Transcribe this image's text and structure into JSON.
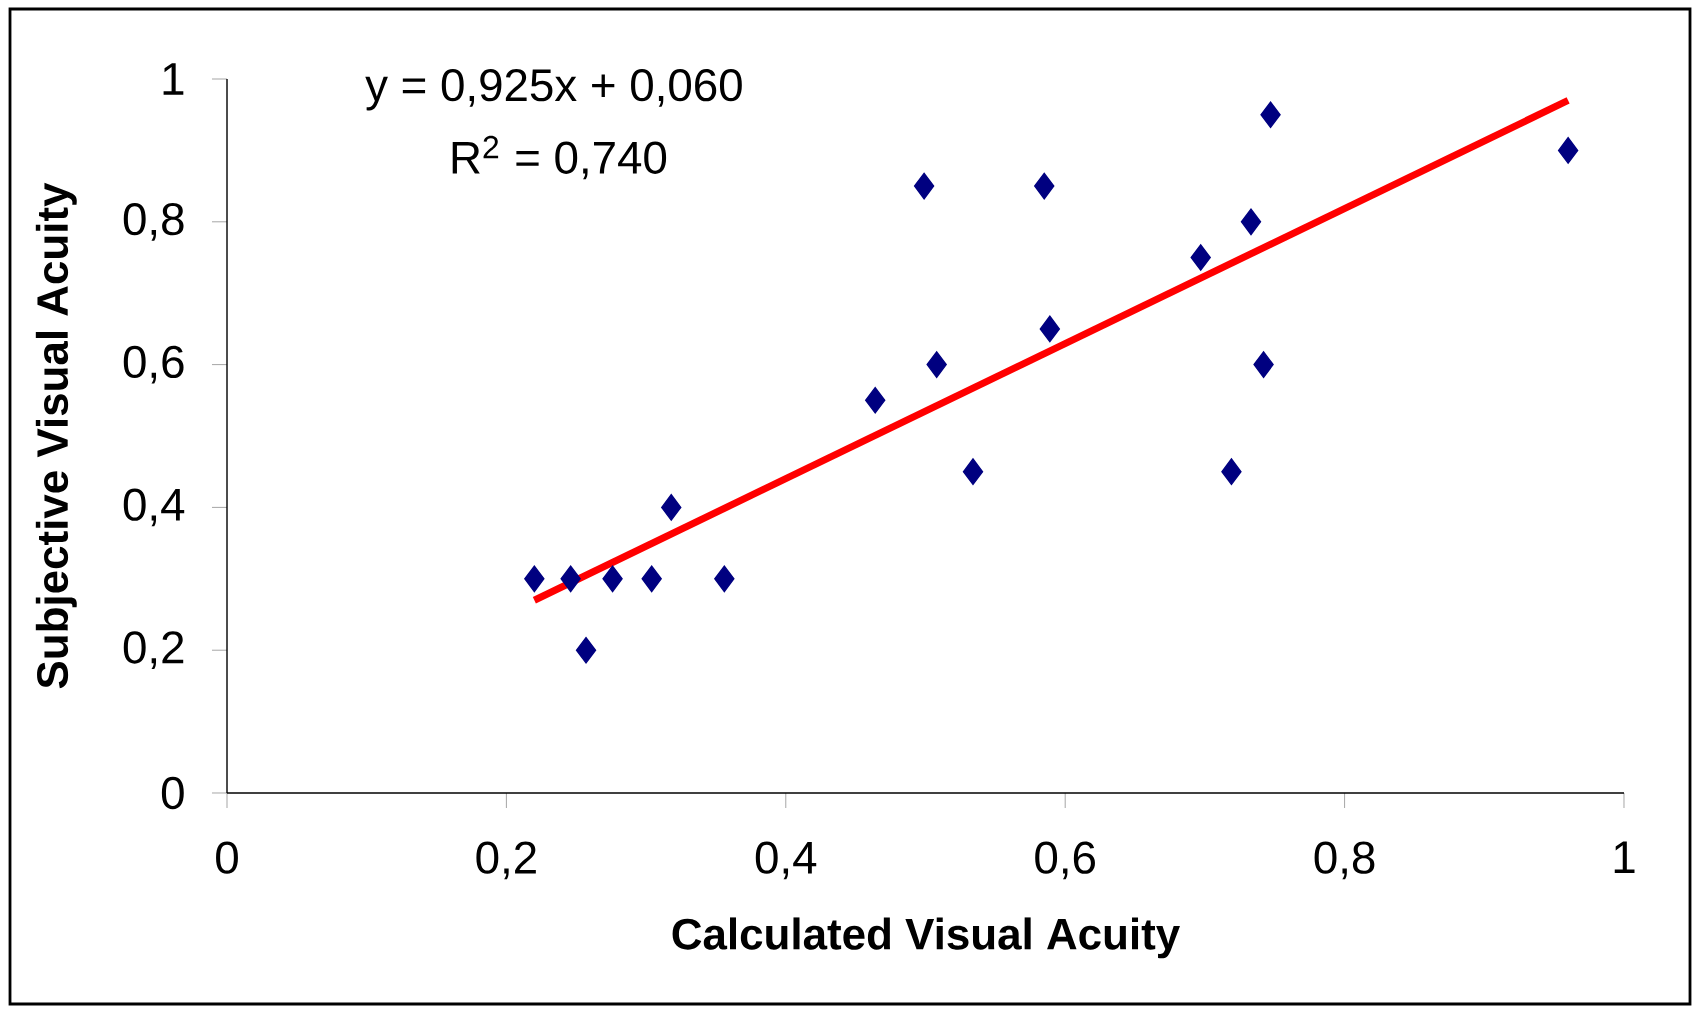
{
  "chart_data": {
    "type": "scatter",
    "xlabel": "Calculated Visual Acuity",
    "ylabel": "Subjective Visual Acuity",
    "annotations": [
      "y = 0,925x + 0,060",
      "R$^{2}$ = 0,740"
    ],
    "xlim": [
      0,
      1
    ],
    "ylim": [
      0,
      1
    ],
    "xticks": [
      0,
      {
        "value": 0.2,
        "label": "0,2"
      },
      {
        "value": 0.4,
        "label": "0,4"
      },
      {
        "value": 0.6,
        "label": "0,6"
      },
      {
        "value": 0.8,
        "label": "0,8"
      },
      1
    ],
    "yticks": [
      0,
      {
        "value": 0.2,
        "label": "0,2"
      },
      {
        "value": 0.4,
        "label": "0,4"
      },
      {
        "value": 0.6,
        "label": "0,6"
      },
      {
        "value": 0.8,
        "label": "0,8"
      },
      1
    ],
    "marker": "diamond",
    "series": [
      {
        "color": "#000080",
        "x": [
          0.22,
          0.246,
          0.257,
          0.276,
          0.304,
          0.318,
          0.356,
          0.464,
          0.499,
          0.508,
          0.534,
          0.585,
          0.589,
          0.697,
          0.719,
          0.733,
          0.742,
          0.747,
          0.96
        ],
        "values": [
          0.3,
          0.3,
          0.2,
          0.3,
          0.3,
          0.4,
          0.3,
          0.55,
          0.85,
          0.6,
          0.45,
          0.85,
          0.65,
          0.75,
          0.45,
          0.8,
          0.6,
          0.95,
          0.9
        ]
      },
      {
        "type": "line",
        "color": "#ff0000",
        "marker": "none",
        "line_style": "solid",
        "x": [
          0.22,
          0.96
        ],
        "values": [
          0.27,
          0.97
        ]
      }
    ]
  }
}
